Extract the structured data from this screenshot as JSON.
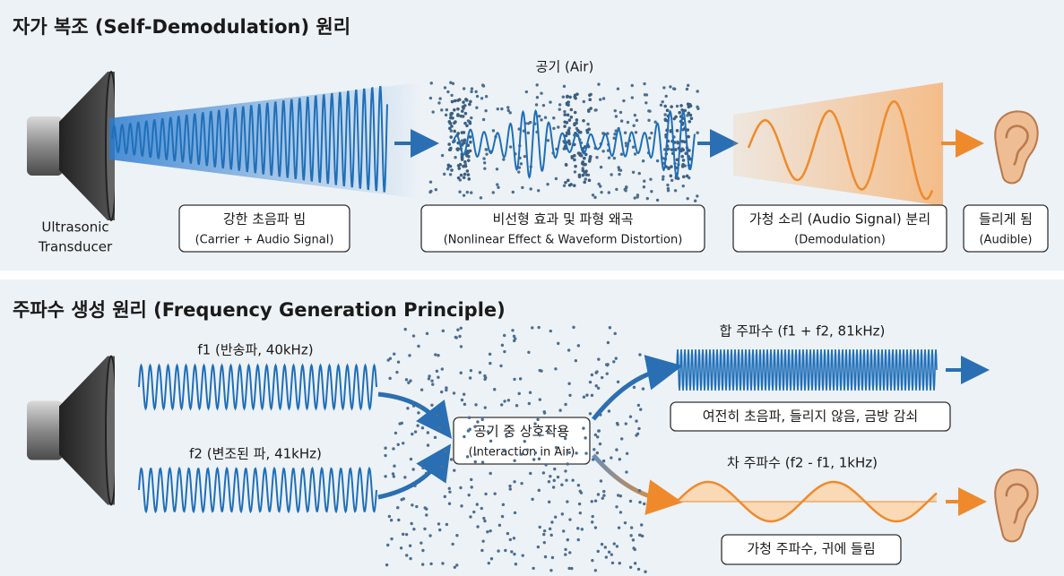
{
  "self_demodulation": {
    "title": "자가 복조 (Self-Demodulation) 원리",
    "air_label": "공기 (Air)",
    "transducer_label": [
      "Ultrasonic",
      "Transducer"
    ],
    "steps": [
      {
        "title": "강한 초음파 빔",
        "subtitle": "(Carrier + Audio Signal)"
      },
      {
        "title": "비선형 효과 및 파형 왜곡",
        "subtitle": "(Nonlinear Effect & Waveform Distortion)"
      },
      {
        "title": "가청 소리 (Audio Signal) 분리",
        "subtitle": "(Demodulation)"
      },
      {
        "title": "들리게 됨",
        "subtitle": "(Audible)"
      }
    ]
  },
  "frequency_generation": {
    "title": "주파수 생성 원리 (Frequency Generation Principle)",
    "f1_label": "f1 (반송파, 40kHz)",
    "f2_label": "f2 (변조된 파, 41kHz)",
    "interaction": {
      "title": "공기 중 상호작용",
      "subtitle": "(Interaction in Air)"
    },
    "sum": {
      "label": "합 주파수 (f1 + f2, 81kHz)",
      "note": "여전히 초음파, 들리지 않음, 금방 감쇠"
    },
    "difference": {
      "label": "차 주파수 (f2 - f1, 1kHz)",
      "note": "가청 주파수, 귀에 들림"
    }
  }
}
